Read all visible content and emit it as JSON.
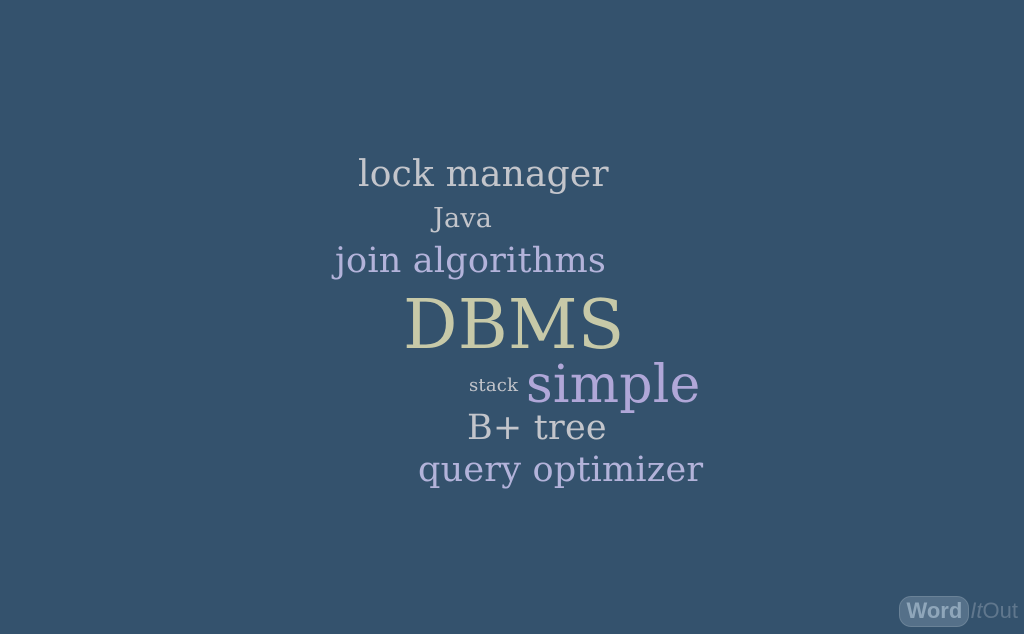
{
  "background_color": "#34526d",
  "words": {
    "lock_manager": "lock manager",
    "java": "Java",
    "join_algorithms": "join algorithms",
    "dbms": "DBMS",
    "stack": "stack",
    "simple": "simple",
    "b_tree": "B+ tree",
    "query_optimizer": "query optimizer"
  },
  "colors": {
    "gray": "#c3c5cb",
    "lavender": "#b3b3da",
    "khaki": "#c7c9a8",
    "purple": "#b0a7d8"
  },
  "logo": {
    "word": "Word",
    "it": "It",
    "out": "Out"
  }
}
